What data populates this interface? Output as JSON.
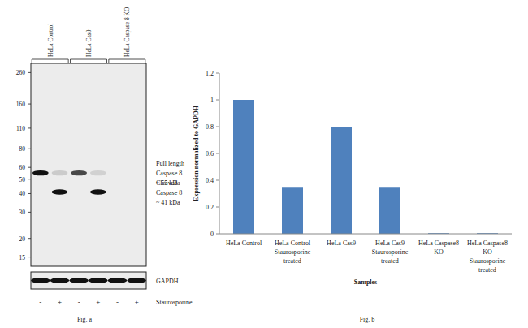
{
  "blot": {
    "title": "Fig. a",
    "groups": [
      {
        "label": "HeLa Control",
        "lanes": [
          0,
          1
        ]
      },
      {
        "label": "HeLa Cas9",
        "lanes": [
          2,
          3
        ]
      },
      {
        "label": "HeLa Caspase 8 KO",
        "lanes": [
          4,
          5
        ]
      }
    ],
    "treatments": [
      "-",
      "+",
      "-",
      "+",
      "-",
      "+"
    ],
    "treatment_label": "Staurosporine",
    "ylim": [
      13,
      300
    ],
    "yticks": [
      260,
      160,
      110,
      80,
      60,
      50,
      40,
      30,
      20,
      15
    ],
    "log": true,
    "bands": [
      {
        "lane": 0,
        "kda": 55,
        "intensity": 1
      },
      {
        "lane": 1,
        "kda": 55,
        "intensity": 0.15
      },
      {
        "lane": 1,
        "kda": 41,
        "intensity": 1
      },
      {
        "lane": 2,
        "kda": 55,
        "intensity": 0.75
      },
      {
        "lane": 3,
        "kda": 55,
        "intensity": 0.12
      },
      {
        "lane": 3,
        "kda": 41,
        "intensity": 1
      }
    ],
    "band_labels": [
      {
        "kda": 55,
        "lines": [
          "Full length",
          "Caspase 8",
          "~ 55 kDa"
        ]
      },
      {
        "kda": 41,
        "lines": [
          "Cleaved",
          "Caspase 8",
          "~ 41 kDa"
        ]
      }
    ],
    "loading_control": {
      "label": "GAPDH",
      "intensity": [
        1,
        1,
        1,
        1,
        1,
        1
      ]
    }
  },
  "chart_data": {
    "type": "bar",
    "title": "Fig. b",
    "xlabel": "Samples",
    "ylabel": "Expression normalized to GAPDH",
    "categories": [
      "HeLa Control",
      "HeLa Control Staurosporine treated",
      "HeLa Cas9",
      "HeLa Cas9 Staurosporine treated",
      "HeLa Caspase8 KO",
      "HeLa Caspase8 KO Staurosporine treated"
    ],
    "values": [
      1,
      0.35,
      0.8,
      0.35,
      0.005,
      0.005
    ],
    "color": "#4f81bd",
    "ylim": [
      0,
      1.2
    ],
    "yticks": [
      0,
      0.2,
      0.4,
      0.6,
      0.8,
      1,
      1.2
    ],
    "grid": false
  }
}
